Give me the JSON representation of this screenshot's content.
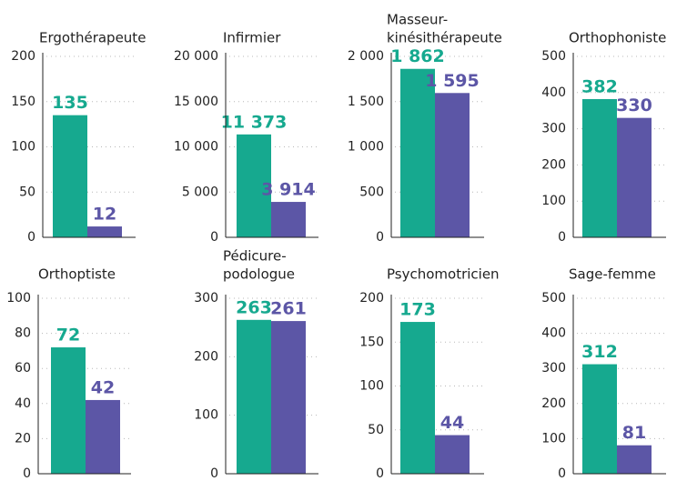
{
  "chart_data": [
    {
      "type": "bar",
      "title": [
        "Ergothérapeute"
      ],
      "values": [
        135,
        12
      ],
      "colors": [
        "#16a98f",
        "#5c56a6"
      ],
      "ylim": [
        0,
        200
      ],
      "yticks": [
        0,
        50,
        100,
        150,
        200
      ],
      "grid": true
    },
    {
      "type": "bar",
      "title": [
        "Infirmier"
      ],
      "values": [
        11373,
        3914
      ],
      "value_labels": [
        "11 373",
        "3 914"
      ],
      "colors": [
        "#16a98f",
        "#5c56a6"
      ],
      "ylim": [
        0,
        20000
      ],
      "yticks": [
        0,
        {
          "value": 5000,
          "label": "5 000"
        },
        {
          "value": 10000,
          "label": "10 000"
        },
        {
          "value": 15000,
          "label": "15 000"
        },
        {
          "value": 20000,
          "label": "20 000"
        }
      ],
      "grid": true
    },
    {
      "type": "bar",
      "title": [
        "Masseur-",
        "kinésithérapeute"
      ],
      "values": [
        1862,
        1595
      ],
      "value_labels": [
        "1 862",
        "1 595"
      ],
      "colors": [
        "#16a98f",
        "#5c56a6"
      ],
      "ylim": [
        0,
        2000
      ],
      "yticks": [
        0,
        500,
        {
          "value": 1000,
          "label": "1 000"
        },
        {
          "value": 1500,
          "label": "1 500"
        },
        {
          "value": 2000,
          "label": "2 000"
        }
      ],
      "grid": true
    },
    {
      "type": "bar",
      "title": [
        "Orthophoniste"
      ],
      "values": [
        382,
        330
      ],
      "colors": [
        "#16a98f",
        "#5c56a6"
      ],
      "ylim": [
        0,
        500
      ],
      "yticks": [
        0,
        100,
        200,
        300,
        400,
        500
      ],
      "grid": true
    },
    {
      "type": "bar",
      "title": [
        "Orthoptiste"
      ],
      "values": [
        72,
        42
      ],
      "colors": [
        "#16a98f",
        "#5c56a6"
      ],
      "ylim": [
        0,
        100
      ],
      "yticks": [
        0,
        20,
        40,
        60,
        80,
        100
      ],
      "grid": true
    },
    {
      "type": "bar",
      "title": [
        "Pédicure-",
        "podologue"
      ],
      "values": [
        263,
        261
      ],
      "colors": [
        "#16a98f",
        "#5c56a6"
      ],
      "ylim": [
        0,
        300
      ],
      "yticks": [
        0,
        100,
        200,
        300
      ],
      "grid": true
    },
    {
      "type": "bar",
      "title": [
        "Psychomotricien"
      ],
      "values": [
        173,
        44
      ],
      "colors": [
        "#16a98f",
        "#5c56a6"
      ],
      "ylim": [
        0,
        200
      ],
      "yticks": [
        0,
        50,
        100,
        150,
        200
      ],
      "grid": true
    },
    {
      "type": "bar",
      "title": [
        "Sage-femme"
      ],
      "values": [
        312,
        81
      ],
      "colors": [
        "#16a98f",
        "#5c56a6"
      ],
      "ylim": [
        0,
        500
      ],
      "yticks": [
        0,
        100,
        200,
        300,
        400,
        500
      ],
      "grid": true
    }
  ]
}
